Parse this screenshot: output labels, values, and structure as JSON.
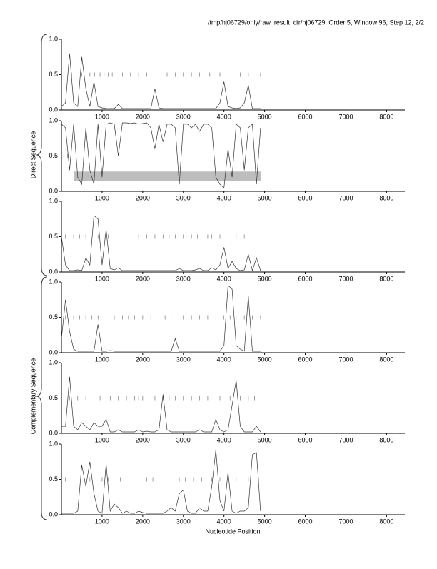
{
  "title": "/tmp/hj06729/only/raw_result_dir/hj06729, Order 5, Window 96, Step 12, 2/2",
  "x_label": "Nucleotide Position",
  "groups": [
    "Direct Sequence",
    "Complementary Sequence"
  ],
  "chart_data": [
    {
      "type": "line",
      "color": "#333333",
      "xlim": [
        0,
        8450
      ],
      "ylim": [
        0,
        1
      ],
      "xticks": [
        1000,
        2000,
        3000,
        4000,
        5000,
        6000,
        7000,
        8000
      ],
      "yticks": [
        {
          "value": 0,
          "label": "0.0"
        },
        0.5,
        {
          "value": 1,
          "label": "1.0"
        }
      ],
      "x": [
        0,
        100,
        200,
        300,
        400,
        500,
        600,
        700,
        800,
        900,
        1000,
        1100,
        1200,
        1300,
        1400,
        1500,
        1600,
        1700,
        1800,
        1900,
        2000,
        2100,
        2200,
        2300,
        2400,
        2500,
        2600,
        2700,
        2800,
        2900,
        3000,
        3100,
        3200,
        3300,
        3400,
        3500,
        3600,
        3700,
        3800,
        3900,
        4000,
        4100,
        4200,
        4300,
        4400,
        4500,
        4600,
        4700,
        4800,
        4900
      ],
      "values": [
        0.05,
        0.1,
        0.8,
        0.1,
        0.05,
        0.75,
        0.3,
        0.05,
        0.4,
        0.05,
        0.03,
        0.02,
        0.02,
        0.02,
        0.08,
        0.02,
        0.02,
        0.02,
        0.02,
        0.02,
        0.02,
        0.02,
        0.02,
        0.3,
        0.03,
        0.02,
        0.02,
        0.02,
        0.02,
        0.02,
        0.02,
        0.02,
        0.02,
        0.02,
        0.02,
        0.02,
        0.02,
        0.02,
        0.02,
        0.1,
        0.4,
        0.05,
        0.03,
        0.02,
        0.03,
        0.1,
        0.35,
        0.02,
        0.02,
        0.02
      ],
      "rug": {
        "y": 0.5,
        "x": [
          250,
          500,
          700,
          820,
          950,
          1050,
          1150,
          1250,
          1500,
          1700,
          1900,
          2100,
          2400,
          2600,
          2800,
          3000,
          3200,
          3400,
          3650,
          3900,
          4100,
          4400,
          4600,
          4900
        ]
      }
    },
    {
      "type": "line",
      "color": "#333333",
      "xlim": [
        0,
        8450
      ],
      "ylim": [
        0,
        1
      ],
      "xticks": [
        1000,
        2000,
        3000,
        4000,
        5000,
        6000,
        7000,
        8000
      ],
      "yticks": [
        {
          "value": 0,
          "label": "0.0"
        },
        0.5,
        {
          "value": 1,
          "label": "1.0"
        }
      ],
      "x": [
        0,
        100,
        200,
        300,
        400,
        500,
        600,
        700,
        800,
        900,
        1000,
        1100,
        1200,
        1300,
        1400,
        1500,
        1600,
        1700,
        1800,
        1900,
        2000,
        2100,
        2200,
        2300,
        2400,
        2500,
        2600,
        2700,
        2800,
        2900,
        3000,
        3100,
        3200,
        3300,
        3400,
        3500,
        3600,
        3700,
        3800,
        3900,
        4000,
        4100,
        4200,
        4300,
        4400,
        4500,
        4600,
        4700,
        4800,
        4900
      ],
      "values": [
        0.95,
        0.9,
        0.3,
        0.95,
        0.2,
        0.1,
        0.9,
        0.3,
        0.1,
        0.95,
        0.2,
        0.95,
        0.97,
        0.95,
        0.5,
        0.97,
        0.97,
        0.96,
        0.97,
        0.95,
        0.96,
        0.97,
        0.9,
        0.6,
        0.95,
        0.7,
        0.95,
        0.95,
        0.9,
        0.1,
        0.95,
        0.95,
        0.9,
        0.95,
        0.85,
        0.95,
        0.95,
        0.9,
        0.2,
        0.1,
        0.05,
        0.6,
        0.2,
        0.95,
        0.9,
        0.3,
        0.9,
        0.95,
        0.1,
        0.9
      ],
      "band": {
        "x": [
          300,
          4900
        ],
        "y": [
          0.15,
          0.28
        ]
      },
      "rug": {
        "y": 0.5,
        "x": [
          150,
          4850
        ]
      }
    },
    {
      "type": "line",
      "color": "#333333",
      "xlim": [
        0,
        8450
      ],
      "ylim": [
        0,
        1
      ],
      "xticks": [
        1000,
        2000,
        3000,
        4000,
        5000,
        6000,
        7000,
        8000
      ],
      "yticks": [
        {
          "value": 0,
          "label": "0.0"
        },
        0.5,
        {
          "value": 1,
          "label": "1.0"
        }
      ],
      "x": [
        0,
        100,
        200,
        300,
        400,
        500,
        600,
        700,
        800,
        900,
        1000,
        1100,
        1200,
        1300,
        1400,
        1500,
        1600,
        1700,
        1800,
        1900,
        2000,
        2100,
        2200,
        2300,
        2400,
        2500,
        2600,
        2700,
        2800,
        2900,
        3000,
        3100,
        3200,
        3300,
        3400,
        3500,
        3600,
        3700,
        3800,
        3900,
        4000,
        4100,
        4200,
        4300,
        4400,
        4500,
        4600,
        4700,
        4800,
        4900
      ],
      "values": [
        0.5,
        0.1,
        0.02,
        0.02,
        0.03,
        0.02,
        0.2,
        0.1,
        0.8,
        0.75,
        0.1,
        0.6,
        0.05,
        0.03,
        0.06,
        0.02,
        0.02,
        0.02,
        0.02,
        0.02,
        0.02,
        0.02,
        0.02,
        0.02,
        0.02,
        0.02,
        0.02,
        0.02,
        0.02,
        0.05,
        0.02,
        0.02,
        0.02,
        0.03,
        0.05,
        0.02,
        0.02,
        0.06,
        0.03,
        0.1,
        0.35,
        0.05,
        0.15,
        0.05,
        0.02,
        0.03,
        0.25,
        0.02,
        0.2,
        0.02
      ],
      "rug": {
        "y": 0.5,
        "x": [
          100,
          300,
          450,
          600,
          800,
          900,
          1050,
          1150,
          1900,
          2100,
          2300,
          2500,
          2650,
          2800,
          3000,
          3200,
          3350,
          3600,
          3700,
          3900,
          4100,
          4300,
          4500
        ]
      }
    },
    {
      "type": "line",
      "color": "#333333",
      "xlim": [
        0,
        8450
      ],
      "ylim": [
        0,
        1
      ],
      "xticks": [
        1000,
        2000,
        3000,
        4000,
        5000,
        6000,
        7000,
        8000
      ],
      "yticks": [
        {
          "value": 0,
          "label": "0.0"
        },
        0.5,
        {
          "value": 1,
          "label": "1.0"
        }
      ],
      "x": [
        0,
        100,
        200,
        300,
        400,
        500,
        600,
        700,
        800,
        900,
        1000,
        1100,
        1200,
        1300,
        1400,
        1500,
        1600,
        1700,
        1800,
        1900,
        2000,
        2100,
        2200,
        2300,
        2400,
        2500,
        2600,
        2700,
        2800,
        2900,
        3000,
        3100,
        3200,
        3300,
        3400,
        3500,
        3600,
        3700,
        3800,
        3900,
        4000,
        4100,
        4200,
        4300,
        4400,
        4500,
        4600,
        4700,
        4800,
        4900
      ],
      "values": [
        0.2,
        0.75,
        0.3,
        0.05,
        0.02,
        0.02,
        0.02,
        0.02,
        0.02,
        0.4,
        0.02,
        0.02,
        0.03,
        0.02,
        0.02,
        0.02,
        0.02,
        0.02,
        0.02,
        0.02,
        0.02,
        0.02,
        0.02,
        0.02,
        0.02,
        0.02,
        0.02,
        0.02,
        0.2,
        0.02,
        0.02,
        0.02,
        0.02,
        0.02,
        0.02,
        0.02,
        0.02,
        0.02,
        0.02,
        0.02,
        0.1,
        0.95,
        0.9,
        0.1,
        0.05,
        0.02,
        0.8,
        0.02,
        0.02,
        0.02
      ],
      "rug": {
        "y": 0.5,
        "x": [
          100,
          300,
          450,
          600,
          750,
          900,
          1100,
          1300,
          1500,
          1650,
          1800,
          2000,
          2200,
          2450,
          2550,
          2700,
          3000,
          3200,
          3400,
          3600,
          3800,
          4000,
          4150,
          4300,
          4500,
          4700,
          4900
        ]
      }
    },
    {
      "type": "line",
      "color": "#333333",
      "xlim": [
        0,
        8450
      ],
      "ylim": [
        0,
        1
      ],
      "xticks": [
        1000,
        2000,
        3000,
        4000,
        5000,
        6000,
        7000,
        8000
      ],
      "yticks": [
        {
          "value": 0,
          "label": "0.0"
        },
        0.5,
        {
          "value": 1,
          "label": "1.0"
        }
      ],
      "x": [
        0,
        100,
        200,
        300,
        400,
        500,
        600,
        700,
        800,
        900,
        1000,
        1100,
        1200,
        1300,
        1400,
        1500,
        1600,
        1700,
        1800,
        1900,
        2000,
        2100,
        2200,
        2300,
        2400,
        2500,
        2600,
        2700,
        2800,
        2900,
        3000,
        3100,
        3200,
        3300,
        3400,
        3500,
        3600,
        3700,
        3800,
        3900,
        4000,
        4100,
        4200,
        4300,
        4400,
        4500,
        4600,
        4700,
        4800,
        4900
      ],
      "values": [
        0.1,
        0.1,
        0.8,
        0.1,
        0.05,
        0.15,
        0.1,
        0.05,
        0.15,
        0.1,
        0.1,
        0.2,
        0.02,
        0.02,
        0.05,
        0.02,
        0.02,
        0.02,
        0.02,
        0.05,
        0.02,
        0.03,
        0.02,
        0.02,
        0.05,
        0.55,
        0.05,
        0.02,
        0.02,
        0.02,
        0.02,
        0.02,
        0.02,
        0.02,
        0.05,
        0.02,
        0.02,
        0.02,
        0.2,
        0.05,
        0.02,
        0.05,
        0.4,
        0.75,
        0.1,
        0.02,
        0.02,
        0.02,
        0.1,
        0.02
      ],
      "rug": {
        "y": 0.5,
        "x": [
          200,
          400,
          600,
          800,
          950,
          1100,
          1200,
          1400,
          1600,
          1800,
          1900,
          2000,
          2150,
          2300,
          2500,
          2650,
          2800,
          3000,
          3200,
          3400,
          3600,
          3900,
          4150,
          4400,
          4600,
          4750
        ]
      }
    },
    {
      "type": "line",
      "color": "#333333",
      "xlim": [
        0,
        8450
      ],
      "ylim": [
        0,
        1
      ],
      "xticks": [
        1000,
        2000,
        3000,
        4000,
        5000,
        6000,
        7000,
        8000
      ],
      "yticks": [
        {
          "value": 0,
          "label": "0.0"
        },
        0.5,
        {
          "value": 1,
          "label": "1.0"
        }
      ],
      "x": [
        0,
        100,
        200,
        300,
        400,
        500,
        600,
        700,
        800,
        900,
        1000,
        1100,
        1200,
        1300,
        1400,
        1500,
        1600,
        1700,
        1800,
        1900,
        2000,
        2100,
        2200,
        2300,
        2400,
        2500,
        2600,
        2700,
        2800,
        2900,
        3000,
        3100,
        3200,
        3300,
        3400,
        3500,
        3600,
        3700,
        3800,
        3900,
        4000,
        4100,
        4200,
        4300,
        4400,
        4500,
        4600,
        4700,
        4800,
        4900
      ],
      "values": [
        0.02,
        0.02,
        0.02,
        0.02,
        0.05,
        0.7,
        0.4,
        0.75,
        0.3,
        0.05,
        0.02,
        0.72,
        0.05,
        0.15,
        0.1,
        0.02,
        0.05,
        0.02,
        0.02,
        0.05,
        0.03,
        0.02,
        0.02,
        0.02,
        0.02,
        0.02,
        0.05,
        0.1,
        0.05,
        0.3,
        0.35,
        0.05,
        0.02,
        0.02,
        0.1,
        0.05,
        0.05,
        0.4,
        0.92,
        0.2,
        0.05,
        0.6,
        0.05,
        0.02,
        0.05,
        0.05,
        0.1,
        0.85,
        0.88,
        0.05
      ],
      "rug": {
        "y": 0.5,
        "x": [
          100,
          550,
          700,
          1000,
          1150,
          1450,
          2100,
          2250,
          2900,
          3050,
          3250,
          3450,
          3700,
          3900,
          4100,
          4300,
          4600,
          4850
        ]
      }
    }
  ]
}
